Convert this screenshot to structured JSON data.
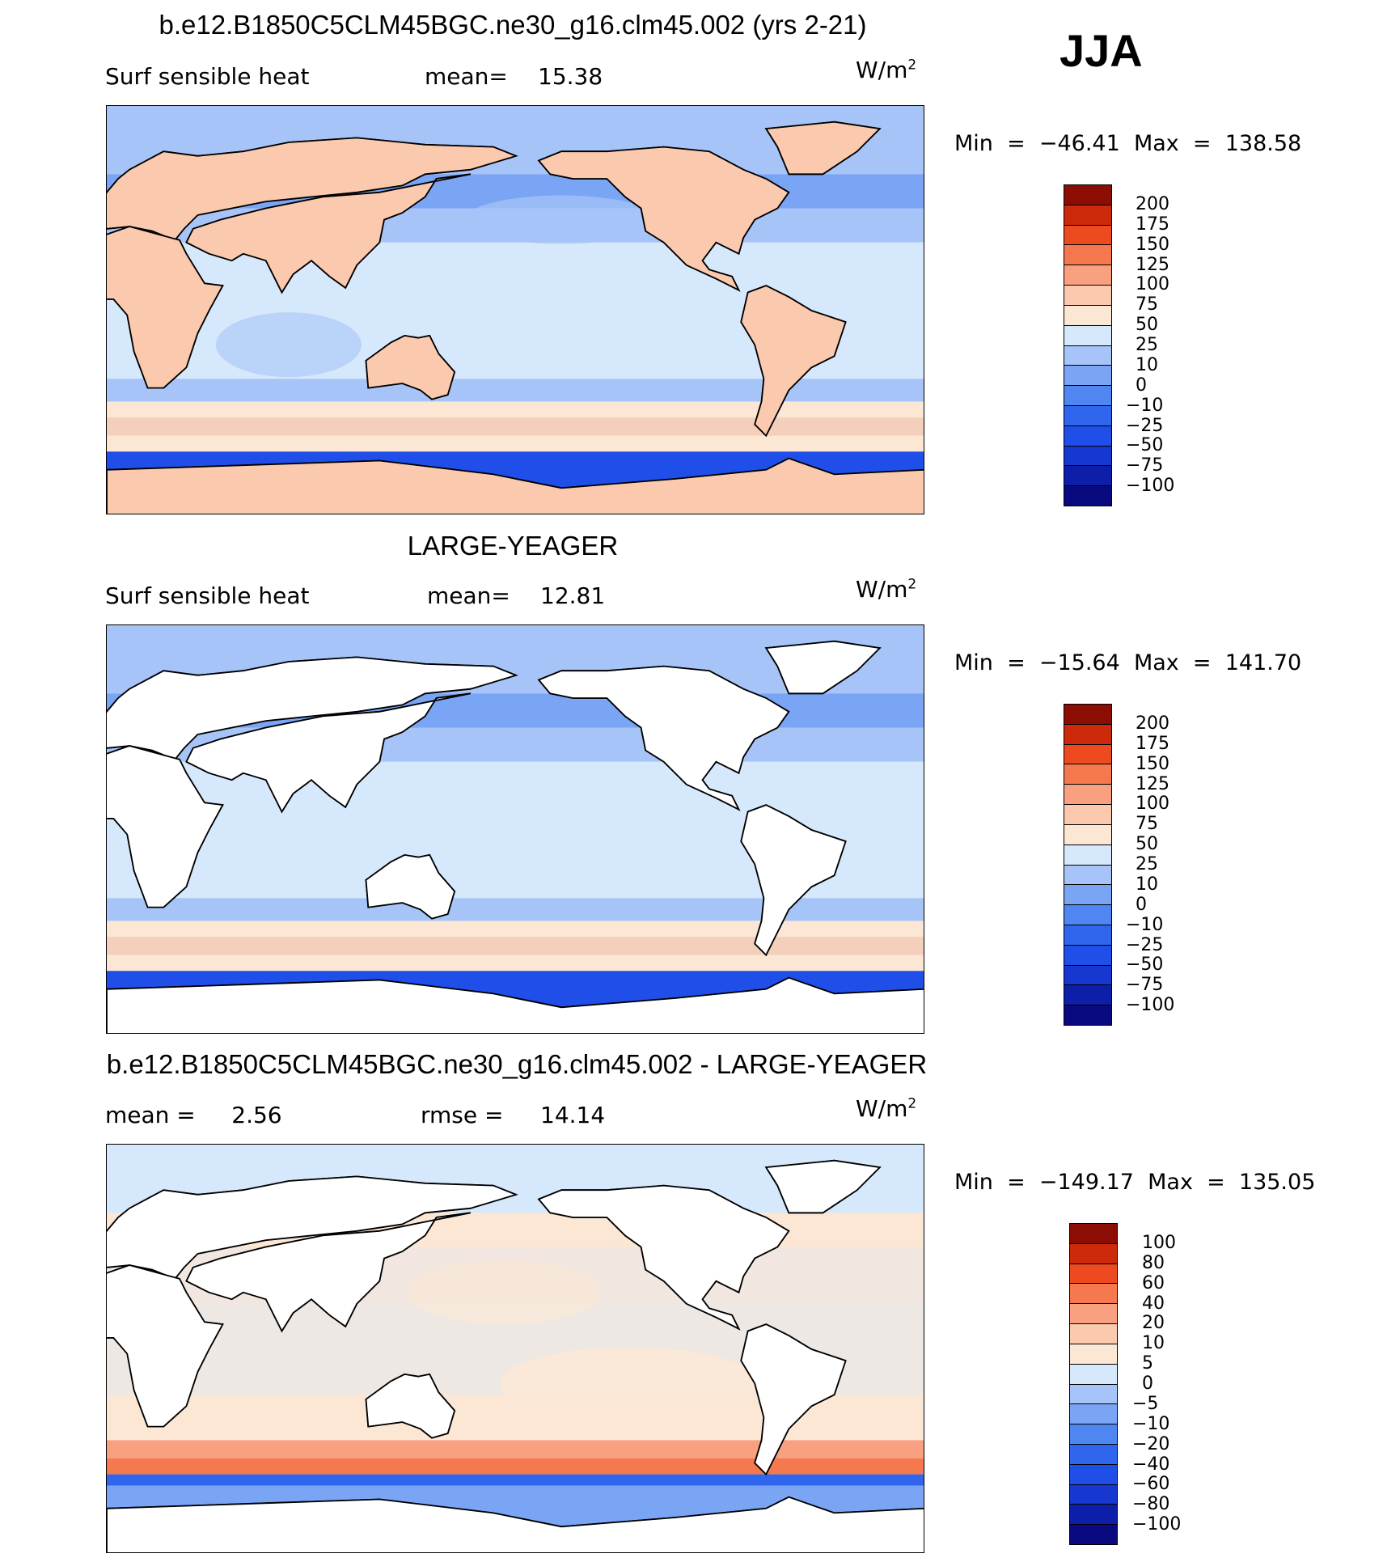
{
  "season": "JJA",
  "palette": [
    "#0a0a80",
    "#0d1fa8",
    "#1637d0",
    "#1f4ee8",
    "#3066ee",
    "#4f86f2",
    "#7aa4f4",
    "#a6c4f7",
    "#d6e8fb",
    "#fce7d4",
    "#fbc9ad",
    "#f9a080",
    "#f5784f",
    "#ee4a1f",
    "#cc2a0a",
    "#8c0d04"
  ],
  "panels": [
    {
      "title": "b.e12.B1850C5CLM45BGC.ne30_g16.clm45.002 (yrs 2-21)",
      "sub_left": "Surf sensible heat",
      "sub_mid_label": "mean=",
      "sub_mid_value": "15.38",
      "units_base": "W/m",
      "units_exp": "2",
      "minmax": "Min  =  −46.41  Max  =  138.58",
      "levels": [
        "200",
        "175",
        "150",
        "125",
        "100",
        "75",
        "50",
        "25",
        "10",
        "0",
        "−10",
        "−25",
        "−50",
        "−75",
        "−100"
      ],
      "land_masked": false
    },
    {
      "title": "LARGE-YEAGER",
      "sub_left": "Surf sensible heat",
      "sub_mid_label": "mean=",
      "sub_mid_value": "12.81",
      "units_base": "W/m",
      "units_exp": "2",
      "minmax": "Min  =  −15.64  Max  =  141.70",
      "levels": [
        "200",
        "175",
        "150",
        "125",
        "100",
        "75",
        "50",
        "25",
        "10",
        "0",
        "−10",
        "−25",
        "−50",
        "−75",
        "−100"
      ],
      "land_masked": true
    },
    {
      "title": "b.e12.B1850C5CLM45BGC.ne30_g16.clm45.002 - LARGE-YEAGER",
      "sub_left": "mean =     2.56",
      "sub_mid_label": "rmse =",
      "sub_mid_value": "14.14",
      "units_base": "W/m",
      "units_exp": "2",
      "minmax": "Min  =  −149.17  Max  =  135.05",
      "levels": [
        "100",
        "80",
        "60",
        "40",
        "20",
        "10",
        "5",
        "0",
        "−5",
        "−10",
        "−20",
        "−40",
        "−60",
        "−80",
        "−100"
      ],
      "land_masked": true
    }
  ]
}
